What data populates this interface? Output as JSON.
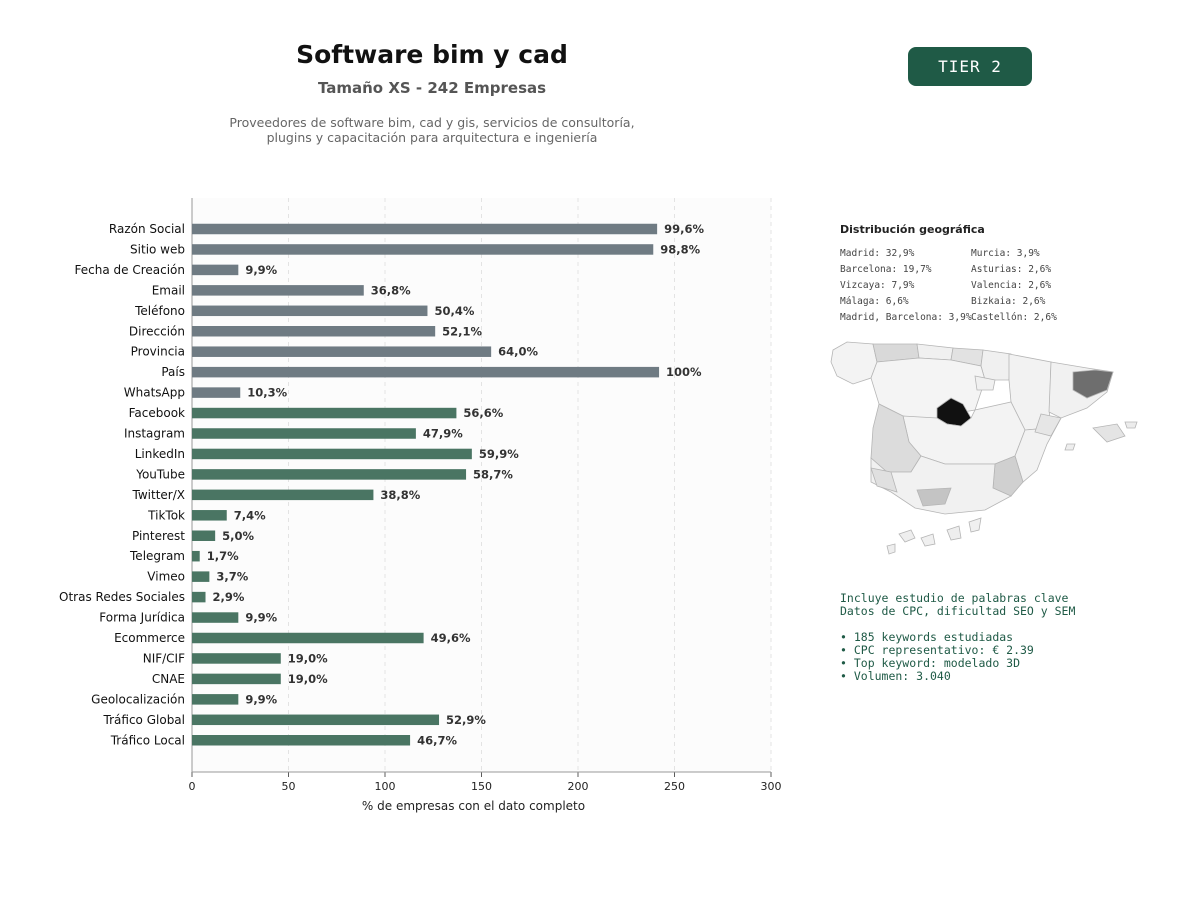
{
  "header": {
    "title": "Software bim y cad",
    "subtitle": "Tamaño XS - 242 Empresas",
    "description_line1": "Proveedores de software bim, cad y gis, servicios de consultoría,",
    "description_line2": "plugins y capacitación para arquitectura e ingeniería",
    "badge": "TIER 2"
  },
  "colors": {
    "gray_bar": "#6f7b83",
    "green_bar": "#4a7563",
    "accent": "#1f5a46"
  },
  "chart_data": {
    "type": "bar",
    "orientation": "horizontal",
    "xlabel": "% de empresas con el dato completo",
    "xlim": [
      0,
      300
    ],
    "xticks": [
      0,
      50,
      100,
      150,
      200,
      250,
      300
    ],
    "grid": "vertical dashed",
    "categories": [
      "Razón Social",
      "Sitio web",
      "Fecha de Creación",
      "Email",
      "Teléfono",
      "Dirección",
      "Provincia",
      "País",
      "WhatsApp",
      "Facebook",
      "Instagram",
      "LinkedIn",
      "YouTube",
      "Twitter/X",
      "TikTok",
      "Pinterest",
      "Telegram",
      "Vimeo",
      "Otras Redes Sociales",
      "Forma Jurídica",
      "Ecommerce",
      "NIF/CIF",
      "CNAE",
      "Geolocalización",
      "Tráfico Global",
      "Tráfico Local"
    ],
    "values": [
      241,
      239,
      24,
      89,
      122,
      126,
      155,
      242,
      25,
      137,
      116,
      145,
      142,
      94,
      18,
      12,
      4,
      9,
      7,
      24,
      120,
      46,
      46,
      24,
      128,
      113
    ],
    "labels": [
      "99,6%",
      "98,8%",
      "9,9%",
      "36,8%",
      "50,4%",
      "52,1%",
      "64,0%",
      "100%",
      "10,3%",
      "56,6%",
      "47,9%",
      "59,9%",
      "58,7%",
      "38,8%",
      "7,4%",
      "5,0%",
      "1,7%",
      "3,7%",
      "2,9%",
      "9,9%",
      "49,6%",
      "19,0%",
      "19,0%",
      "9,9%",
      "52,9%",
      "46,7%"
    ],
    "groups": [
      "gray",
      "gray",
      "gray",
      "gray",
      "gray",
      "gray",
      "gray",
      "gray",
      "gray",
      "green",
      "green",
      "green",
      "green",
      "green",
      "green",
      "green",
      "green",
      "green",
      "green",
      "green",
      "green",
      "green",
      "green",
      "green",
      "green",
      "green"
    ]
  },
  "geo": {
    "title": "Distribución geográfica",
    "col1": [
      "Madrid: 32,9%",
      "Barcelona: 19,7%",
      "Vizcaya: 7,9%",
      "Málaga: 6,6%",
      "Madrid, Barcelona: 3,9%"
    ],
    "col2": [
      "Murcia: 3,9%",
      "Asturias: 2,6%",
      "Valencia: 2,6%",
      "Bizkaia: 2,6%",
      "Castellón: 2,6%"
    ]
  },
  "keywords": {
    "line1": "Incluye estudio de palabras clave",
    "line2": "Datos de CPC, dificultad SEO y SEM",
    "bullets": [
      "• 185 keywords estudiadas",
      "• CPC representativo: € 2.39",
      "• Top keyword: modelado 3D",
      "• Volumen: 3.040"
    ]
  }
}
